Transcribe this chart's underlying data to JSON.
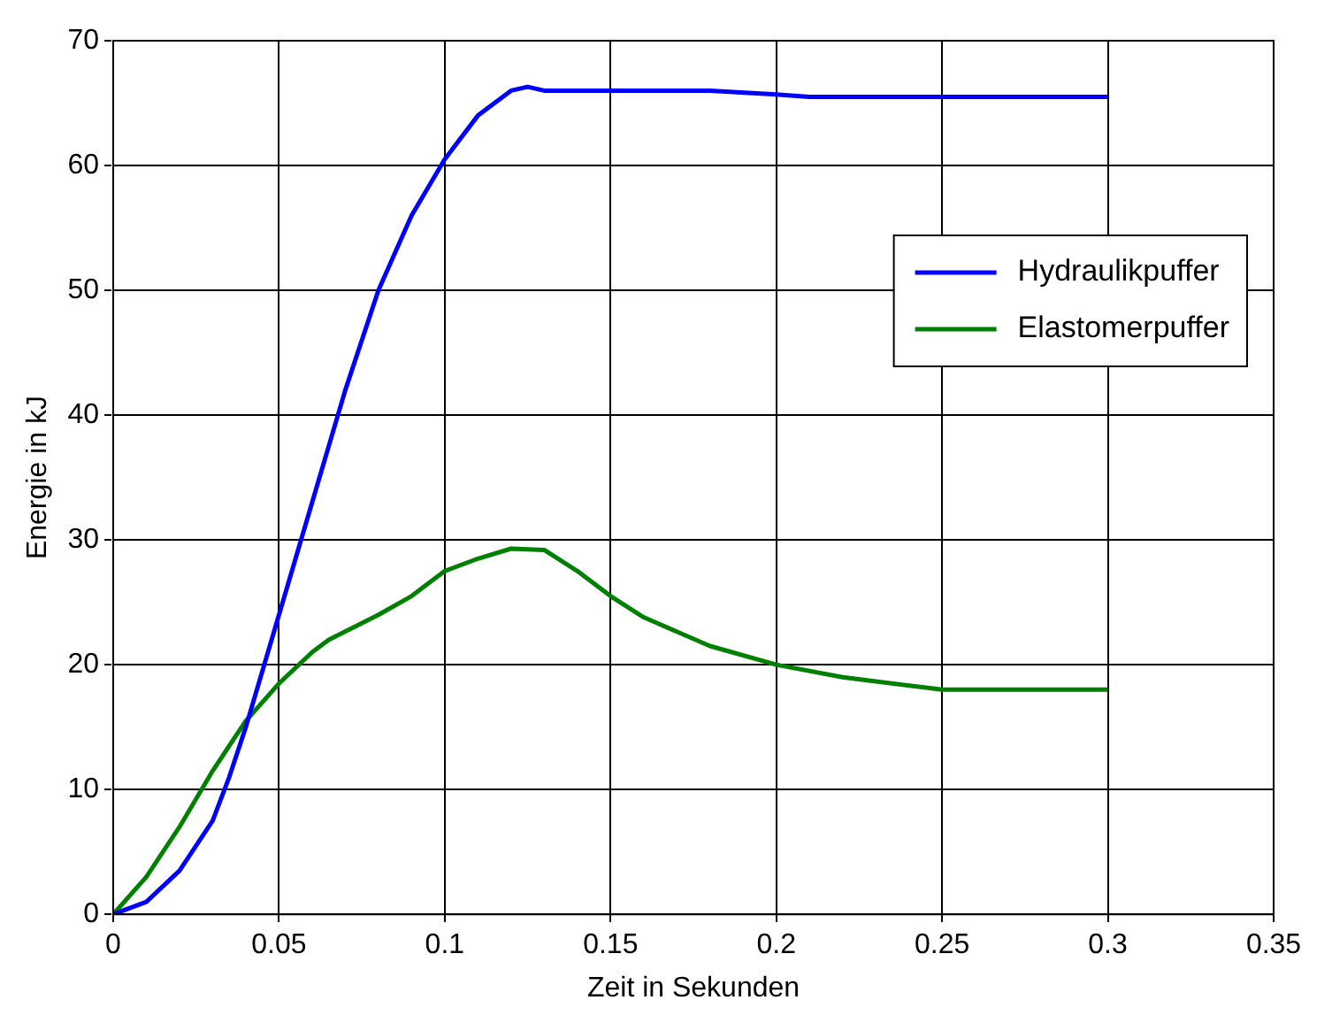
{
  "chart_data": {
    "type": "line",
    "xlabel": "Zeit in Sekunden",
    "ylabel": "Energie in kJ",
    "xlim": [
      0,
      0.35
    ],
    "xticks": [
      0,
      0.05,
      0.1,
      0.15,
      0.2,
      0.25,
      0.3,
      0.35
    ],
    "ylim": [
      0,
      70
    ],
    "yticks": [
      0,
      10,
      20,
      30,
      40,
      50,
      60,
      70
    ],
    "grid": true,
    "legend": "top right",
    "marker": "none",
    "line_style": "solid",
    "series": [
      {
        "name": "Hydraulikpuffer",
        "color": "#0000ff",
        "x": [
          0,
          0.01,
          0.02,
          0.03,
          0.035,
          0.04,
          0.045,
          0.05,
          0.06,
          0.07,
          0.08,
          0.09,
          0.1,
          0.11,
          0.12,
          0.125,
          0.13,
          0.18,
          0.2,
          0.21,
          0.3
        ],
        "values": [
          0,
          1,
          3.5,
          7.5,
          11,
          15,
          19.5,
          24,
          33,
          42,
          50,
          56,
          60.5,
          64,
          66,
          66.3,
          66,
          66,
          65.7,
          65.5,
          65.5
        ]
      },
      {
        "name": "Elastomerpuffer",
        "color": "#008000",
        "x": [
          0,
          0.01,
          0.02,
          0.03,
          0.04,
          0.05,
          0.06,
          0.065,
          0.08,
          0.09,
          0.1,
          0.11,
          0.12,
          0.13,
          0.14,
          0.15,
          0.16,
          0.18,
          0.2,
          0.22,
          0.25,
          0.3
        ],
        "values": [
          0,
          3,
          7,
          11.5,
          15.5,
          18.5,
          21,
          22,
          24,
          25.5,
          27.5,
          28.5,
          29.3,
          29.2,
          27.5,
          25.5,
          23.8,
          21.5,
          20,
          19,
          18,
          18
        ]
      }
    ]
  }
}
